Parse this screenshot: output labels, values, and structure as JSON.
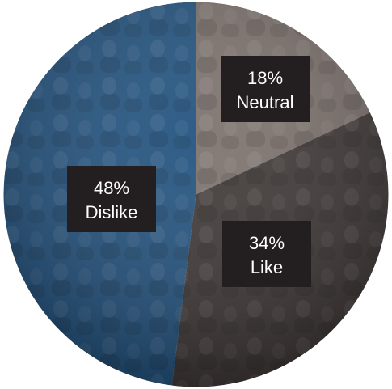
{
  "chart_data": {
    "type": "pie",
    "slices": [
      {
        "percent_label": "18%",
        "label": "Neutral",
        "value": 18,
        "color": "#7a6f6a"
      },
      {
        "percent_label": "34%",
        "label": "Like",
        "value": 34,
        "color": "#3a3331"
      },
      {
        "percent_label": "48%",
        "label": "Dislike",
        "value": 48,
        "color": "#1d4f7d"
      }
    ],
    "start_angle_deg": 0,
    "direction": "clockwise",
    "background": "photo of a seated audience in an auditorium, tinted",
    "label_box_color": "#231f20",
    "label_text_color": "#ffffff"
  }
}
